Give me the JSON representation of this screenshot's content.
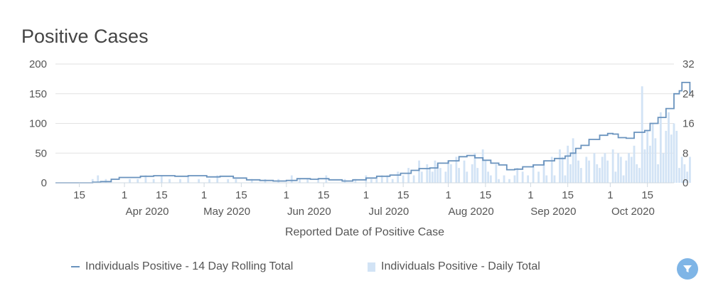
{
  "colors": {
    "line": "#6a93be",
    "bar": "#d2e3f5",
    "grid": "#e2e2e2",
    "axis_text": "#555555",
    "filter": "#7fb5e6"
  },
  "chart_data": {
    "type": "line+bar",
    "title": "Positive Cases",
    "xlabel": "Reported Date of Positive Case",
    "x_range": [
      "2020-03-06",
      "2020-10-25"
    ],
    "x_ticks": [
      {
        "date": "2020-03-15",
        "label": "15",
        "month": ""
      },
      {
        "date": "2020-04-01",
        "label": "1",
        "month": "Apr 2020"
      },
      {
        "date": "2020-04-15",
        "label": "15",
        "month": ""
      },
      {
        "date": "2020-05-01",
        "label": "1",
        "month": "May 2020"
      },
      {
        "date": "2020-05-15",
        "label": "15",
        "month": ""
      },
      {
        "date": "2020-06-01",
        "label": "1",
        "month": "Jun 2020"
      },
      {
        "date": "2020-06-15",
        "label": "15",
        "month": ""
      },
      {
        "date": "2020-07-01",
        "label": "1",
        "month": "Jul 2020"
      },
      {
        "date": "2020-07-15",
        "label": "15",
        "month": ""
      },
      {
        "date": "2020-08-01",
        "label": "1",
        "month": "Aug 2020"
      },
      {
        "date": "2020-08-15",
        "label": "15",
        "month": ""
      },
      {
        "date": "2020-09-01",
        "label": "1",
        "month": "Sep 2020"
      },
      {
        "date": "2020-09-15",
        "label": "15",
        "month": ""
      },
      {
        "date": "2020-10-01",
        "label": "1",
        "month": "Oct 2020"
      },
      {
        "date": "2020-10-15",
        "label": "15",
        "month": ""
      }
    ],
    "y_left": {
      "ticks": [
        "0",
        "50",
        "100",
        "150",
        "200"
      ],
      "range": [
        0,
        200
      ]
    },
    "y_right": {
      "ticks": [
        "0",
        "8",
        "16",
        "24",
        "32"
      ],
      "range": [
        0,
        32
      ]
    },
    "legend": [
      "Individuals Positive - 14 Day Rolling Total",
      "Individuals Positive - Daily Total"
    ],
    "series": [
      {
        "name": "Individuals Positive - 14 Day Rolling Total",
        "type": "line",
        "axis": "left",
        "points": [
          [
            "2020-03-06",
            0
          ],
          [
            "2020-03-15",
            0
          ],
          [
            "2020-03-20",
            1
          ],
          [
            "2020-03-23",
            2
          ],
          [
            "2020-03-27",
            6
          ],
          [
            "2020-03-30",
            9
          ],
          [
            "2020-04-04",
            9
          ],
          [
            "2020-04-07",
            11
          ],
          [
            "2020-04-12",
            12
          ],
          [
            "2020-04-20",
            11
          ],
          [
            "2020-04-25",
            12
          ],
          [
            "2020-05-02",
            10
          ],
          [
            "2020-05-07",
            11
          ],
          [
            "2020-05-12",
            8
          ],
          [
            "2020-05-17",
            5
          ],
          [
            "2020-05-22",
            4
          ],
          [
            "2020-05-27",
            3
          ],
          [
            "2020-06-01",
            4
          ],
          [
            "2020-06-05",
            7
          ],
          [
            "2020-06-10",
            6
          ],
          [
            "2020-06-13",
            7
          ],
          [
            "2020-06-17",
            5
          ],
          [
            "2020-06-22",
            3
          ],
          [
            "2020-06-26",
            5
          ],
          [
            "2020-07-01",
            8
          ],
          [
            "2020-07-05",
            11
          ],
          [
            "2020-07-10",
            13
          ],
          [
            "2020-07-14",
            16
          ],
          [
            "2020-07-18",
            21
          ],
          [
            "2020-07-21",
            24
          ],
          [
            "2020-07-25",
            25
          ],
          [
            "2020-07-28",
            33
          ],
          [
            "2020-08-01",
            37
          ],
          [
            "2020-08-05",
            44
          ],
          [
            "2020-08-08",
            46
          ],
          [
            "2020-08-11",
            42
          ],
          [
            "2020-08-14",
            38
          ],
          [
            "2020-08-17",
            33
          ],
          [
            "2020-08-20",
            30
          ],
          [
            "2020-08-23",
            22
          ],
          [
            "2020-08-26",
            23
          ],
          [
            "2020-08-29",
            27
          ],
          [
            "2020-09-02",
            30
          ],
          [
            "2020-09-06",
            37
          ],
          [
            "2020-09-10",
            41
          ],
          [
            "2020-09-14",
            45
          ],
          [
            "2020-09-16",
            50
          ],
          [
            "2020-09-18",
            58
          ],
          [
            "2020-09-20",
            63
          ],
          [
            "2020-09-23",
            73
          ],
          [
            "2020-09-27",
            80
          ],
          [
            "2020-09-30",
            83
          ],
          [
            "2020-10-02",
            82
          ],
          [
            "2020-10-04",
            76
          ],
          [
            "2020-10-07",
            75
          ],
          [
            "2020-10-10",
            85
          ],
          [
            "2020-10-14",
            88
          ],
          [
            "2020-10-16",
            100
          ],
          [
            "2020-10-19",
            110
          ],
          [
            "2020-10-22",
            125
          ],
          [
            "2020-10-25",
            150
          ],
          [
            "2020-10-27",
            155
          ],
          [
            "2020-10-28",
            169
          ],
          [
            "2020-10-30",
            169
          ],
          [
            "2020-10-31",
            150
          ]
        ]
      },
      {
        "name": "Individuals Positive - Daily Total",
        "type": "bar",
        "axis": "right",
        "points": [
          [
            "2020-03-20",
            1
          ],
          [
            "2020-03-22",
            2
          ],
          [
            "2020-03-25",
            1
          ],
          [
            "2020-04-03",
            1
          ],
          [
            "2020-04-06",
            1
          ],
          [
            "2020-04-09",
            2
          ],
          [
            "2020-04-12",
            1
          ],
          [
            "2020-04-15",
            2
          ],
          [
            "2020-04-18",
            1
          ],
          [
            "2020-04-22",
            1
          ],
          [
            "2020-04-25",
            2
          ],
          [
            "2020-04-29",
            1
          ],
          [
            "2020-05-03",
            1
          ],
          [
            "2020-05-06",
            2
          ],
          [
            "2020-05-10",
            1
          ],
          [
            "2020-05-13",
            1
          ],
          [
            "2020-05-19",
            1
          ],
          [
            "2020-05-24",
            1
          ],
          [
            "2020-05-29",
            1
          ],
          [
            "2020-06-03",
            2
          ],
          [
            "2020-06-06",
            1
          ],
          [
            "2020-06-09",
            1
          ],
          [
            "2020-06-13",
            1
          ],
          [
            "2020-06-16",
            2
          ],
          [
            "2020-06-23",
            1
          ],
          [
            "2020-06-27",
            1
          ],
          [
            "2020-07-01",
            2
          ],
          [
            "2020-07-03",
            1
          ],
          [
            "2020-07-05",
            1
          ],
          [
            "2020-07-07",
            2
          ],
          [
            "2020-07-09",
            2
          ],
          [
            "2020-07-11",
            1
          ],
          [
            "2020-07-13",
            3
          ],
          [
            "2020-07-15",
            2
          ],
          [
            "2020-07-17",
            4
          ],
          [
            "2020-07-19",
            2
          ],
          [
            "2020-07-21",
            6
          ],
          [
            "2020-07-22",
            3
          ],
          [
            "2020-07-24",
            5
          ],
          [
            "2020-07-25",
            4
          ],
          [
            "2020-07-26",
            3
          ],
          [
            "2020-07-27",
            6
          ],
          [
            "2020-07-28",
            5
          ],
          [
            "2020-07-29",
            4
          ],
          [
            "2020-07-31",
            3
          ],
          [
            "2020-08-01",
            6
          ],
          [
            "2020-08-02",
            5
          ],
          [
            "2020-08-04",
            7
          ],
          [
            "2020-08-05",
            4
          ],
          [
            "2020-08-07",
            6
          ],
          [
            "2020-08-08",
            3
          ],
          [
            "2020-08-10",
            5
          ],
          [
            "2020-08-11",
            8
          ],
          [
            "2020-08-12",
            4
          ],
          [
            "2020-08-14",
            9
          ],
          [
            "2020-08-15",
            6
          ],
          [
            "2020-08-16",
            3
          ],
          [
            "2020-08-17",
            2
          ],
          [
            "2020-08-19",
            5
          ],
          [
            "2020-08-20",
            1
          ],
          [
            "2020-08-22",
            2
          ],
          [
            "2020-08-24",
            1
          ],
          [
            "2020-08-26",
            2
          ],
          [
            "2020-08-27",
            4
          ],
          [
            "2020-08-29",
            3
          ],
          [
            "2020-08-31",
            2
          ],
          [
            "2020-09-02",
            5
          ],
          [
            "2020-09-04",
            3
          ],
          [
            "2020-09-06",
            6
          ],
          [
            "2020-09-07",
            2
          ],
          [
            "2020-09-09",
            7
          ],
          [
            "2020-09-10",
            2
          ],
          [
            "2020-09-12",
            9
          ],
          [
            "2020-09-13",
            7
          ],
          [
            "2020-09-14",
            2
          ],
          [
            "2020-09-15",
            10
          ],
          [
            "2020-09-16",
            5
          ],
          [
            "2020-09-17",
            12
          ],
          [
            "2020-09-18",
            8
          ],
          [
            "2020-09-19",
            6
          ],
          [
            "2020-09-20",
            4
          ],
          [
            "2020-09-22",
            7
          ],
          [
            "2020-09-23",
            6
          ],
          [
            "2020-09-25",
            8
          ],
          [
            "2020-09-26",
            5
          ],
          [
            "2020-09-27",
            4
          ],
          [
            "2020-09-28",
            7
          ],
          [
            "2020-09-29",
            8
          ],
          [
            "2020-09-30",
            6
          ],
          [
            "2020-10-02",
            9
          ],
          [
            "2020-10-03",
            3
          ],
          [
            "2020-10-04",
            8
          ],
          [
            "2020-10-05",
            7
          ],
          [
            "2020-10-06",
            2
          ],
          [
            "2020-10-07",
            6
          ],
          [
            "2020-10-08",
            8
          ],
          [
            "2020-10-09",
            7
          ],
          [
            "2020-10-10",
            10
          ],
          [
            "2020-10-11",
            5
          ],
          [
            "2020-10-12",
            4
          ],
          [
            "2020-10-13",
            26
          ],
          [
            "2020-10-14",
            9
          ],
          [
            "2020-10-15",
            14
          ],
          [
            "2020-10-16",
            10
          ],
          [
            "2020-10-17",
            16
          ],
          [
            "2020-10-18",
            12
          ],
          [
            "2020-10-19",
            5
          ],
          [
            "2020-10-20",
            19
          ],
          [
            "2020-10-21",
            8
          ],
          [
            "2020-10-22",
            14
          ],
          [
            "2020-10-23",
            19
          ],
          [
            "2020-10-24",
            13
          ],
          [
            "2020-10-25",
            16
          ],
          [
            "2020-10-26",
            14
          ],
          [
            "2020-10-27",
            4
          ],
          [
            "2020-10-28",
            7
          ],
          [
            "2020-10-29",
            5
          ],
          [
            "2020-10-30",
            3
          ],
          [
            "2020-10-31",
            7
          ]
        ]
      }
    ]
  },
  "filter_icon": "filter-icon"
}
